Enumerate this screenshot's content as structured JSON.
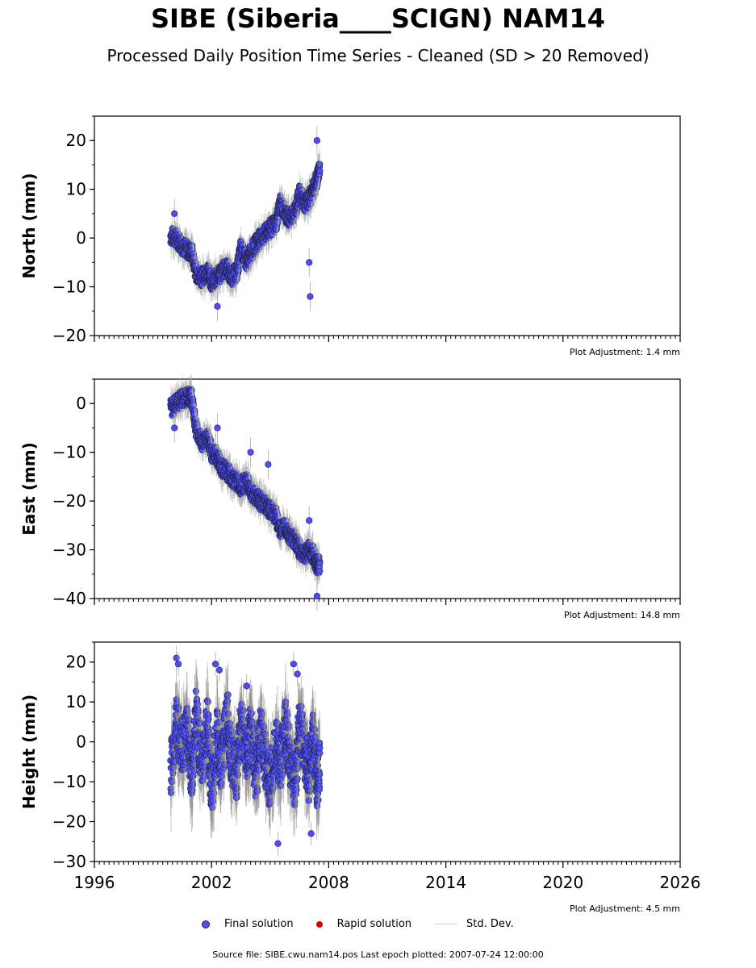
{
  "title": "SIBE (Siberia____SCIGN) NAM14",
  "subtitle": "Processed Daily Position Time Series - Cleaned (SD > 20 Removed)",
  "colors": {
    "final": "#4d4dff",
    "rapid": "#dd0000",
    "std": "#cccccc",
    "edge": "#222244"
  },
  "legend": {
    "final": "Final solution",
    "rapid": "Rapid solution",
    "std": "Std. Dev."
  },
  "footer": "Source file: SIBE.cwu.nam14.pos  Last epoch plotted: 2007-07-24 12:00:00",
  "chart_data": [
    {
      "type": "scatter",
      "ylabel": "North (mm)",
      "adjustment": "Plot Adjustment: 1.4 mm",
      "xlim": [
        1996,
        2026
      ],
      "ylim": [
        -20,
        25
      ],
      "yticks": [
        -20,
        -10,
        0,
        10,
        20
      ],
      "xticks": [
        1996,
        2002,
        2008,
        2014,
        2020,
        2026
      ],
      "x": [
        1999.9,
        2000.2,
        2000.5,
        2000.8,
        2001.0,
        2001.2,
        2001.5,
        2001.8,
        2002.0,
        2002.3,
        2002.5,
        2002.8,
        2003.0,
        2003.3,
        2003.5,
        2003.8,
        2004.0,
        2004.3,
        2004.5,
        2004.8,
        2005.0,
        2005.3,
        2005.5,
        2005.8,
        2006.0,
        2006.3,
        2006.5,
        2006.8,
        2007.0,
        2007.2,
        2007.4,
        2007.55
      ],
      "y": [
        0.5,
        0,
        -1.5,
        -2.5,
        -3,
        -7,
        -8,
        -7,
        -9,
        -8,
        -7,
        -6,
        -8,
        -7,
        -2,
        -5,
        -3,
        -1,
        0,
        1,
        2,
        3,
        7,
        5,
        4,
        6,
        9,
        7,
        8,
        10,
        12,
        15
      ],
      "outliers_x": [
        2000.1,
        2002.3,
        2007.0,
        2007.05,
        2007.4
      ],
      "outliers_y": [
        5,
        -14,
        -5,
        -12,
        20
      ]
    },
    {
      "type": "scatter",
      "ylabel": "East (mm)",
      "adjustment": "Plot Adjustment: 14.8 mm",
      "xlim": [
        1996,
        2026
      ],
      "ylim": [
        -40,
        5
      ],
      "yticks": [
        -40,
        -30,
        -20,
        -10,
        0
      ],
      "xticks": [
        1996,
        2002,
        2008,
        2014,
        2020,
        2026
      ],
      "x": [
        1999.9,
        2000.2,
        2000.5,
        2000.8,
        2001.0,
        2001.2,
        2001.5,
        2001.8,
        2002.0,
        2002.3,
        2002.5,
        2002.8,
        2003.0,
        2003.3,
        2003.5,
        2003.8,
        2004.0,
        2004.3,
        2004.5,
        2004.8,
        2005.0,
        2005.3,
        2005.5,
        2005.8,
        2006.0,
        2006.3,
        2006.5,
        2006.8,
        2007.0,
        2007.2,
        2007.4,
        2007.55
      ],
      "y": [
        -1,
        0,
        1,
        1.5,
        1,
        -5,
        -8,
        -7,
        -10,
        -11,
        -13,
        -14,
        -15,
        -16,
        -17,
        -16,
        -18,
        -19,
        -20,
        -21,
        -22,
        -23,
        -26,
        -25,
        -27,
        -28,
        -30,
        -31,
        -30,
        -31,
        -33,
        -33
      ],
      "outliers_x": [
        2000.1,
        2002.3,
        2004.0,
        2004.9,
        2007.0,
        2007.4
      ],
      "outliers_y": [
        -5,
        -5,
        -10,
        -12.5,
        -24,
        -39.5
      ]
    },
    {
      "type": "scatter",
      "ylabel": "Height (mm)",
      "adjustment": "Plot Adjustment: 4.5 mm",
      "xlim": [
        1996,
        2026
      ],
      "ylim": [
        -30,
        25
      ],
      "yticks": [
        -30,
        -20,
        -10,
        0,
        10,
        20
      ],
      "xticks": [
        1996,
        2002,
        2008,
        2014,
        2020,
        2026
      ],
      "x": [
        1999.9,
        2000.2,
        2000.5,
        2000.8,
        2001.0,
        2001.2,
        2001.5,
        2001.8,
        2002.0,
        2002.3,
        2002.5,
        2002.8,
        2003.0,
        2003.3,
        2003.5,
        2003.8,
        2004.0,
        2004.3,
        2004.5,
        2004.8,
        2005.0,
        2005.3,
        2005.5,
        2005.8,
        2006.0,
        2006.3,
        2006.5,
        2006.8,
        2007.0,
        2007.2,
        2007.4,
        2007.55
      ],
      "y": [
        -8,
        5,
        -2,
        3,
        -10,
        6,
        -5,
        4,
        -12,
        2,
        -6,
        7,
        -3,
        -8,
        5,
        -4,
        2,
        -9,
        3,
        -6,
        -12,
        1,
        -7,
        4,
        -5,
        -10,
        5,
        -3,
        -8,
        2,
        -10,
        -5
      ],
      "outliers_x": [
        2000.2,
        2000.3,
        2002.2,
        2002.4,
        2003.8,
        2005.4,
        2006.2,
        2006.4,
        2007.1
      ],
      "outliers_y": [
        21,
        19.5,
        19.5,
        18,
        14,
        -25.5,
        19.5,
        17,
        -23
      ]
    }
  ]
}
